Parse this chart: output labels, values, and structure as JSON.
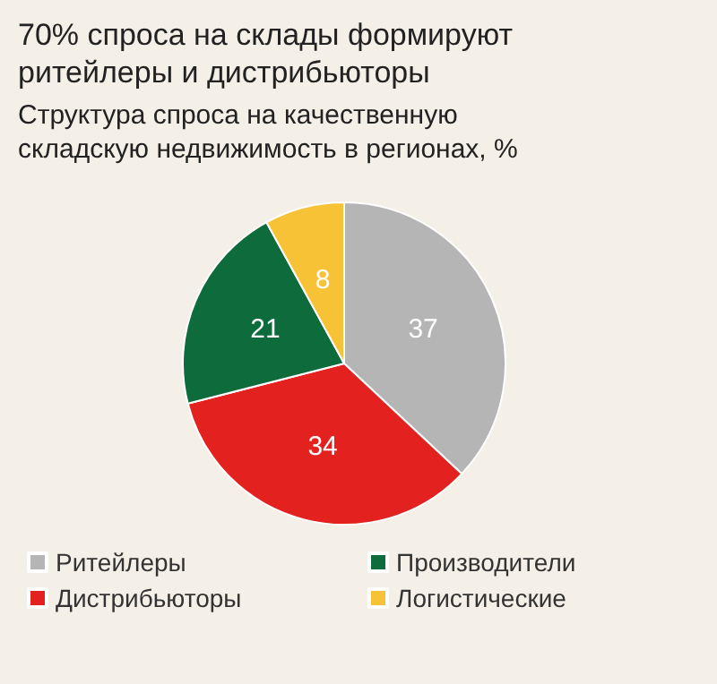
{
  "chart_data": {
    "type": "pie",
    "title": "70% спроса на склады формируют ритейлеры и дистрибьюторы",
    "subtitle": "Структура спроса на качественную складскую недвижимость в регионах, %",
    "categories": [
      "Ритейлеры",
      "Дистрибьюторы",
      "Производители",
      "Логистические"
    ],
    "values": [
      37,
      34,
      21,
      8
    ],
    "colors": [
      "#b5b5b5",
      "#e3221f",
      "#0d6b3c",
      "#f8c237"
    ],
    "data_labels": true,
    "legend": "bottom"
  }
}
